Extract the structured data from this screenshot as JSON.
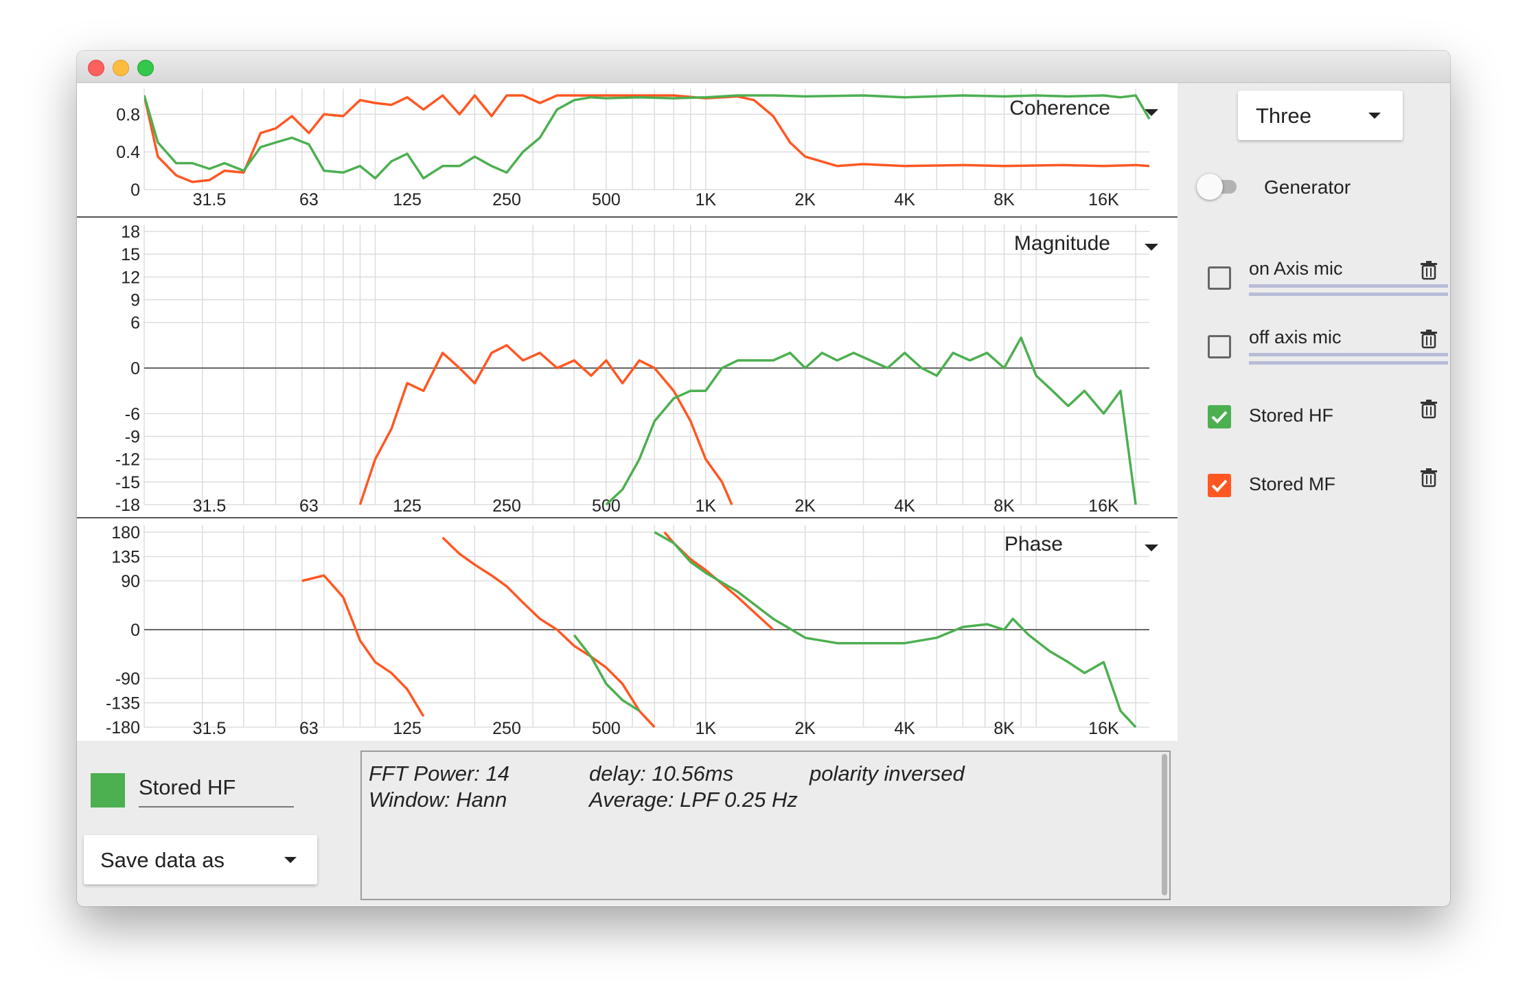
{
  "freq_ticks": [
    "31.5",
    "63",
    "125",
    "250",
    "500",
    "1K",
    "2K",
    "4K",
    "8K",
    "16K"
  ],
  "colors": {
    "green": "#4caf50",
    "orange": "#ff5722",
    "grid": "#dddddd",
    "zero": "#666666"
  },
  "plots": {
    "coherence": {
      "label": "Coherence",
      "y_ticks": [
        "0.8",
        "0.4",
        "0"
      ]
    },
    "magnitude": {
      "label": "Magnitude",
      "y_ticks": [
        "18",
        "15",
        "12",
        "9",
        "6",
        "0",
        "-6",
        "-9",
        "-12",
        "-15",
        "-18"
      ]
    },
    "phase": {
      "label": "Phase",
      "y_ticks": [
        "180",
        "135",
        "90",
        "0",
        "-90",
        "-135",
        "-180"
      ]
    }
  },
  "chart_data": [
    {
      "type": "line",
      "ylabel": "Coherence",
      "xlim_hz": [
        20,
        22000
      ],
      "x_scale": "log",
      "ylim": [
        0,
        1
      ],
      "series": [
        {
          "name": "Stored HF",
          "color": "#4caf50",
          "x": [
            20,
            22,
            25,
            28,
            31.5,
            35,
            40,
            45,
            50,
            56,
            63,
            70,
            80,
            90,
            100,
            112,
            125,
            140,
            160,
            180,
            200,
            225,
            250,
            280,
            315,
            355,
            400,
            450,
            500,
            630,
            800,
            1000,
            1250,
            1600,
            2000,
            3000,
            4000,
            6000,
            8000,
            10000,
            12500,
            16000,
            18000,
            20000,
            22000
          ],
          "y": [
            1.0,
            0.5,
            0.28,
            0.28,
            0.22,
            0.28,
            0.2,
            0.45,
            0.5,
            0.55,
            0.48,
            0.2,
            0.18,
            0.25,
            0.12,
            0.3,
            0.38,
            0.12,
            0.25,
            0.25,
            0.35,
            0.25,
            0.18,
            0.4,
            0.55,
            0.85,
            0.95,
            0.98,
            0.97,
            0.98,
            0.97,
            0.98,
            1.0,
            1.0,
            0.99,
            1.0,
            0.98,
            1.0,
            0.99,
            1.0,
            0.99,
            1.0,
            0.98,
            1.0,
            0.75
          ]
        },
        {
          "name": "Stored MF",
          "color": "#ff5722",
          "x": [
            20,
            22,
            25,
            28,
            31.5,
            35,
            40,
            45,
            50,
            56,
            63,
            70,
            80,
            90,
            100,
            112,
            125,
            140,
            160,
            180,
            200,
            225,
            250,
            280,
            315,
            355,
            400,
            450,
            500,
            630,
            800,
            1000,
            1250,
            1400,
            1600,
            1800,
            2000,
            2500,
            3000,
            4000,
            6000,
            8000,
            12000,
            16000,
            20000,
            22000
          ],
          "y": [
            1.0,
            0.35,
            0.15,
            0.08,
            0.1,
            0.2,
            0.18,
            0.6,
            0.65,
            0.78,
            0.6,
            0.8,
            0.78,
            0.95,
            0.92,
            0.9,
            0.98,
            0.85,
            1.0,
            0.8,
            1.0,
            0.78,
            1.0,
            1.0,
            0.92,
            1.0,
            1.0,
            1.0,
            1.0,
            1.0,
            1.0,
            0.97,
            0.99,
            0.95,
            0.78,
            0.5,
            0.35,
            0.25,
            0.27,
            0.25,
            0.26,
            0.25,
            0.26,
            0.25,
            0.26,
            0.25
          ]
        }
      ]
    },
    {
      "type": "line",
      "ylabel": "Magnitude",
      "xlim_hz": [
        20,
        22000
      ],
      "x_scale": "log",
      "ylim": [
        -18,
        18
      ],
      "series": [
        {
          "name": "Stored HF",
          "color": "#4caf50",
          "x": [
            500,
            560,
            630,
            700,
            800,
            900,
            1000,
            1120,
            1250,
            1400,
            1600,
            1800,
            2000,
            2250,
            2500,
            2800,
            3150,
            3550,
            4000,
            4500,
            5000,
            5600,
            6300,
            7100,
            8000,
            9000,
            10000,
            11200,
            12500,
            14000,
            16000,
            18000,
            20000
          ],
          "y": [
            -18,
            -16,
            -12,
            -7,
            -4,
            -3,
            -3,
            0,
            1,
            1,
            1,
            2,
            0,
            2,
            1,
            2,
            1,
            0,
            2,
            0,
            -1,
            2,
            1,
            2,
            0,
            4,
            -1,
            -3,
            -5,
            -3,
            -6,
            -3,
            -18
          ]
        },
        {
          "name": "Stored MF",
          "color": "#ff5722",
          "x": [
            90,
            100,
            112,
            125,
            140,
            160,
            180,
            200,
            225,
            250,
            280,
            315,
            355,
            400,
            450,
            500,
            560,
            630,
            700,
            800,
            900,
            1000,
            1120,
            1200
          ],
          "y": [
            -18,
            -12,
            -8,
            -2,
            -3,
            2,
            0,
            -2,
            2,
            3,
            1,
            2,
            0,
            1,
            -1,
            1,
            -2,
            1,
            0,
            -3,
            -7,
            -12,
            -15,
            -18
          ]
        }
      ]
    },
    {
      "type": "line",
      "ylabel": "Phase",
      "xlim_hz": [
        20,
        22000
      ],
      "x_scale": "log",
      "ylim": [
        -180,
        180
      ],
      "series": [
        {
          "name": "Stored HF",
          "color": "#4caf50",
          "x": [
            400,
            450,
            500,
            560,
            630,
            700,
            800,
            900,
            1000,
            1250,
            1600,
            2000,
            2500,
            3000,
            4000,
            5000,
            6000,
            7100,
            8000,
            8500,
            9500,
            11000,
            12500,
            14000,
            16000,
            18000,
            20000
          ],
          "y": [
            -10,
            -50,
            -100,
            -130,
            -150,
            180,
            160,
            125,
            105,
            70,
            20,
            -15,
            -25,
            -25,
            -25,
            -15,
            5,
            10,
            0,
            20,
            -10,
            -40,
            -60,
            -80,
            -60,
            -150,
            -180
          ]
        },
        {
          "name": "Stored MF",
          "color": "#ff5722",
          "x": [
            60,
            70,
            80,
            90,
            100,
            112,
            125,
            140,
            160,
            180,
            200,
            225,
            250,
            280,
            315,
            355,
            400,
            450,
            500,
            560,
            630,
            700,
            750,
            800,
            900,
            1000,
            1250,
            1600
          ],
          "y": [
            90,
            100,
            60,
            -20,
            -60,
            -80,
            -110,
            -160,
            170,
            140,
            120,
            100,
            80,
            50,
            20,
            0,
            -30,
            -50,
            -70,
            -100,
            -150,
            -180,
            180,
            160,
            130,
            110,
            60,
            0
          ]
        }
      ]
    }
  ],
  "sidebar": {
    "display_mode": "Three",
    "generator_label": "Generator",
    "sources": [
      {
        "name": "on Axis mic",
        "checked": false
      },
      {
        "name": "off axis mic",
        "checked": false
      },
      {
        "name": "Stored HF",
        "checked": true,
        "color": "#4caf50"
      },
      {
        "name": "Stored MF",
        "checked": true,
        "color": "#ff5722"
      }
    ]
  },
  "bottom": {
    "selected_source": "Stored HF",
    "save_label": "Save data as",
    "info": {
      "fft": "FFT Power: 14",
      "window": "Window: Hann",
      "delay": "delay: 10.56ms",
      "average": "Average: LPF 0.25 Hz",
      "polarity": "polarity inversed"
    }
  }
}
